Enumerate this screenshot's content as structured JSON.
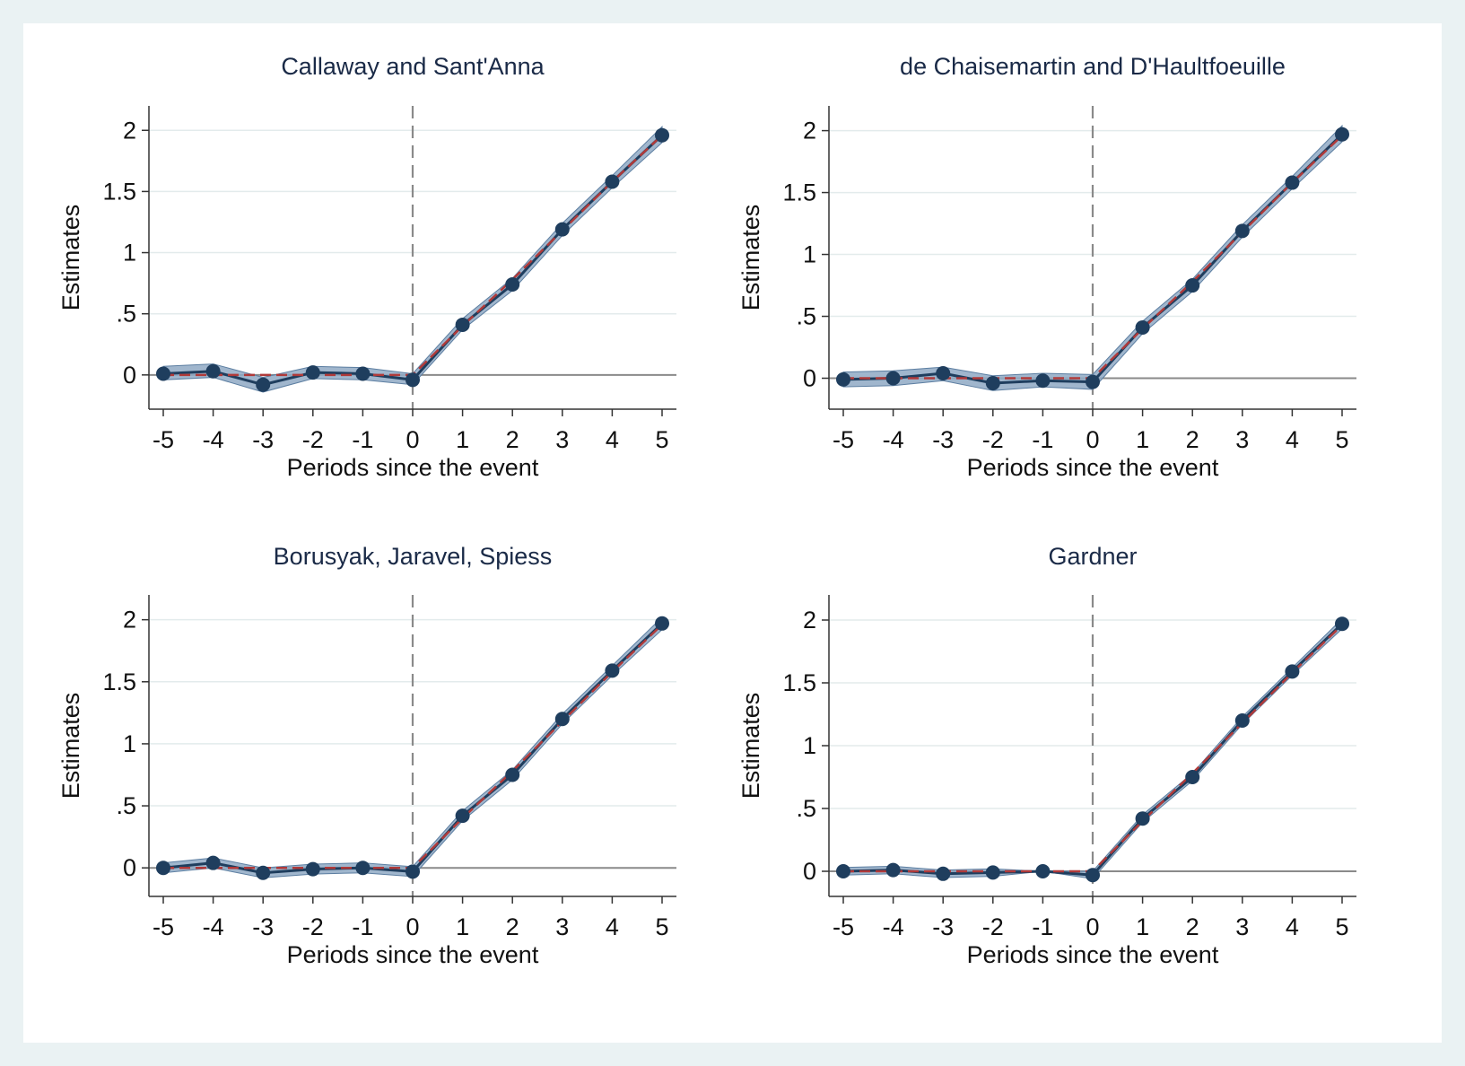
{
  "colors": {
    "background": "#eaf2f3",
    "plot_background": "#ffffff",
    "ci_fill": "#8fa9c4",
    "estimate_line": "#1f3e5e",
    "marker": "#1f3e5e",
    "true_effect_line": "#b03a3a",
    "zero_line": "#8a8a8a",
    "event_line": "#8a8a8a",
    "grid": "#e3ebec",
    "title": "#1a2a47"
  },
  "chart_data": [
    {
      "type": "line",
      "title": "Callaway and Sant'Anna",
      "xlabel": "Periods since the event",
      "ylabel": "Estimates",
      "x": [
        -5,
        -4,
        -3,
        -2,
        -1,
        0,
        1,
        2,
        3,
        4,
        5
      ],
      "xticks": [
        "-5",
        "-4",
        "-3",
        "-2",
        "-1",
        "0",
        "1",
        "2",
        "3",
        "4",
        "5"
      ],
      "yticks": [
        "0",
        ".5",
        "1",
        "1.5",
        "2"
      ],
      "ylim": [
        -0.28,
        2.2
      ],
      "grid": true,
      "event_line_x": 0,
      "series": [
        {
          "values": [
            0.01,
            0.03,
            -0.08,
            0.02,
            0.01,
            -0.04,
            0.41,
            0.74,
            1.19,
            1.58,
            1.96
          ],
          "ci_low": [
            -0.04,
            -0.02,
            -0.14,
            -0.03,
            -0.04,
            -0.08,
            0.37,
            0.69,
            1.14,
            1.53,
            1.9
          ],
          "ci_high": [
            0.07,
            0.09,
            -0.02,
            0.07,
            0.06,
            0.01,
            0.46,
            0.79,
            1.24,
            1.63,
            2.03
          ]
        }
      ],
      "true_effect": [
        0,
        0,
        0,
        0,
        0,
        0,
        0.4,
        0.78,
        1.18,
        1.58,
        1.96
      ]
    },
    {
      "type": "line",
      "title": "de Chaisemartin and D'Haultfoeuille",
      "xlabel": "Periods since the event",
      "ylabel": "Estimates",
      "x": [
        -5,
        -4,
        -3,
        -2,
        -1,
        0,
        1,
        2,
        3,
        4,
        5
      ],
      "xticks": [
        "-5",
        "-4",
        "-3",
        "-2",
        "-1",
        "0",
        "1",
        "2",
        "3",
        "4",
        "5"
      ],
      "yticks": [
        "0",
        ".5",
        "1",
        "1.5",
        "2"
      ],
      "ylim": [
        -0.25,
        2.2
      ],
      "grid": true,
      "event_line_x": 0,
      "series": [
        {
          "values": [
            -0.01,
            0.0,
            0.04,
            -0.04,
            -0.02,
            -0.03,
            0.41,
            0.75,
            1.19,
            1.58,
            1.97
          ],
          "ci_low": [
            -0.07,
            -0.06,
            -0.02,
            -0.1,
            -0.07,
            -0.09,
            0.36,
            0.7,
            1.14,
            1.53,
            1.91
          ],
          "ci_high": [
            0.05,
            0.06,
            0.09,
            0.02,
            0.04,
            0.03,
            0.46,
            0.8,
            1.24,
            1.63,
            2.04
          ]
        }
      ],
      "true_effect": [
        0,
        0,
        0,
        0,
        0,
        0,
        0.4,
        0.78,
        1.18,
        1.58,
        1.96
      ]
    },
    {
      "type": "line",
      "title": "Borusyak, Jaravel, Spiess",
      "xlabel": "Periods since the event",
      "ylabel": "Estimates",
      "x": [
        -5,
        -4,
        -3,
        -2,
        -1,
        0,
        1,
        2,
        3,
        4,
        5
      ],
      "xticks": [
        "-5",
        "-4",
        "-3",
        "-2",
        "-1",
        "0",
        "1",
        "2",
        "3",
        "4",
        "5"
      ],
      "yticks": [
        "0",
        ".5",
        "1",
        "1.5",
        "2"
      ],
      "ylim": [
        -0.23,
        2.2
      ],
      "grid": true,
      "event_line_x": 0,
      "series": [
        {
          "values": [
            0.0,
            0.04,
            -0.04,
            -0.01,
            0.0,
            -0.03,
            0.42,
            0.75,
            1.2,
            1.59,
            1.97
          ],
          "ci_low": [
            -0.04,
            0.0,
            -0.08,
            -0.05,
            -0.04,
            -0.07,
            0.38,
            0.71,
            1.16,
            1.55,
            1.92
          ],
          "ci_high": [
            0.04,
            0.08,
            0.0,
            0.03,
            0.04,
            0.01,
            0.46,
            0.79,
            1.24,
            1.63,
            2.02
          ]
        }
      ],
      "true_effect": [
        0,
        0,
        0,
        0,
        0,
        0,
        0.4,
        0.78,
        1.18,
        1.58,
        1.96
      ]
    },
    {
      "type": "line",
      "title": "Gardner",
      "xlabel": "Periods since the event",
      "ylabel": "Estimates",
      "x": [
        -5,
        -4,
        -3,
        -2,
        -1,
        0,
        1,
        2,
        3,
        4,
        5
      ],
      "xticks": [
        "-5",
        "-4",
        "-3",
        "-2",
        "-1",
        "0",
        "1",
        "2",
        "3",
        "4",
        "5"
      ],
      "yticks": [
        "0",
        ".5",
        "1",
        "1.5",
        "2"
      ],
      "ylim": [
        -0.2,
        2.2
      ],
      "grid": true,
      "event_line_x": 0,
      "series": [
        {
          "values": [
            0.0,
            0.01,
            -0.02,
            -0.01,
            0.0,
            -0.03,
            0.42,
            0.75,
            1.2,
            1.59,
            1.97
          ],
          "ci_low": [
            -0.03,
            -0.02,
            -0.05,
            -0.04,
            0.0,
            -0.06,
            0.39,
            0.72,
            1.17,
            1.56,
            1.93
          ],
          "ci_high": [
            0.03,
            0.04,
            0.01,
            0.02,
            0.0,
            0.0,
            0.45,
            0.78,
            1.23,
            1.62,
            2.01
          ]
        }
      ],
      "true_effect": [
        0,
        0,
        0,
        0,
        0,
        0,
        0.4,
        0.78,
        1.18,
        1.58,
        1.96
      ]
    }
  ]
}
